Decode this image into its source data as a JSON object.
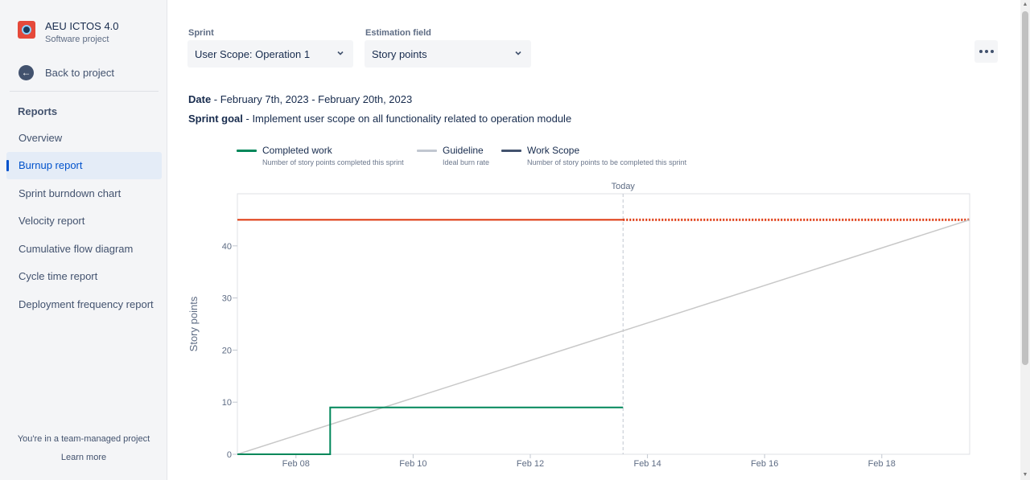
{
  "sidebar": {
    "project_name": "AEU ICTOS 4.0",
    "project_type": "Software project",
    "back_label": "Back to project",
    "reports_heading": "Reports",
    "items": [
      {
        "label": "Overview",
        "active": false
      },
      {
        "label": "Burnup report",
        "active": true
      },
      {
        "label": "Sprint burndown chart",
        "active": false
      },
      {
        "label": "Velocity report",
        "active": false
      },
      {
        "label": "Cumulative flow diagram",
        "active": false
      },
      {
        "label": "Cycle time report",
        "active": false
      },
      {
        "label": "Deployment frequency report",
        "active": false
      }
    ],
    "footer_text": "You're in a team-managed project",
    "learn_more": "Learn more"
  },
  "controls": {
    "sprint_label": "Sprint",
    "sprint_value": "User Scope: Operation 1",
    "estimation_label": "Estimation field",
    "estimation_value": "Story points"
  },
  "info": {
    "date_label": "Date",
    "date_value": " - February 7th, 2023 - February 20th, 2023",
    "goal_label": "Sprint goal",
    "goal_value": " - Implement user scope on all functionality related to operation module"
  },
  "legend": [
    {
      "title": "Completed work",
      "desc": "Number of story points completed this sprint",
      "color": "#00875a"
    },
    {
      "title": "Guideline",
      "desc": "Ideal burn rate",
      "color": "#c1c7d0"
    },
    {
      "title": "Work Scope",
      "desc": "Number of story points to be completed this sprint",
      "color": "#42526e"
    }
  ],
  "chart_data": {
    "type": "line",
    "ylabel": "Story points",
    "today_label": "Today",
    "xlim": [
      "2023-02-07",
      "2023-02-19 12:00"
    ],
    "ylim": [
      0,
      50
    ],
    "x_ticks": [
      "Feb 08",
      "Feb 10",
      "Feb 12",
      "Feb 14",
      "Feb 16",
      "Feb 18"
    ],
    "x_tick_dates": [
      "2023-02-08",
      "2023-02-10",
      "2023-02-12",
      "2023-02-14",
      "2023-02-16",
      "2023-02-18"
    ],
    "y_ticks": [
      0,
      10,
      20,
      30,
      40
    ],
    "today": "2023-02-13 14:00",
    "series": [
      {
        "name": "Work Scope",
        "color": "#de350b",
        "points": [
          [
            "2023-02-07",
            45
          ],
          [
            "2023-02-13 14:00",
            45
          ]
        ],
        "projection": [
          [
            "2023-02-13 14:00",
            45
          ],
          [
            "2023-02-19 12:00",
            45
          ]
        ]
      },
      {
        "name": "Guideline",
        "color": "#c1c7d0",
        "points": [
          [
            "2023-02-07",
            0
          ],
          [
            "2023-02-19 12:00",
            45
          ]
        ]
      },
      {
        "name": "Completed work",
        "color": "#00875a",
        "step": true,
        "points": [
          [
            "2023-02-07",
            0
          ],
          [
            "2023-02-08 14:00",
            0
          ],
          [
            "2023-02-08 14:00",
            9
          ],
          [
            "2023-02-13 14:00",
            9
          ]
        ]
      }
    ]
  }
}
